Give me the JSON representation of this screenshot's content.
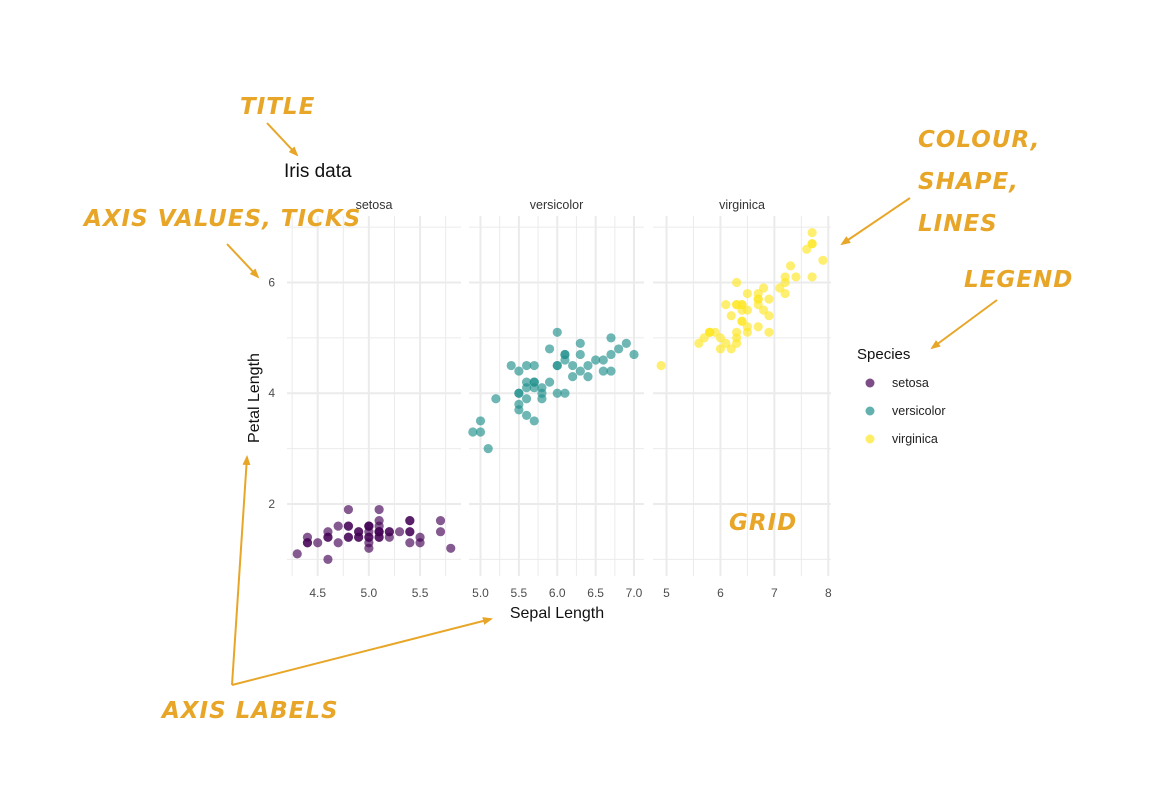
{
  "colors": {
    "setosa": "#440154",
    "versicolor": "#21908C",
    "virginica": "#FDE725",
    "grid": "#ebebeb",
    "annotation": "#E8A628"
  },
  "annotations": [
    {
      "key": "title",
      "text": "TITLE"
    },
    {
      "key": "axis-values",
      "text": "AXIS VALUES, TICKS"
    },
    {
      "key": "colour-1",
      "text": "COLOUR,"
    },
    {
      "key": "colour-2",
      "text": "SHAPE,"
    },
    {
      "key": "colour-3",
      "text": "LINES"
    },
    {
      "key": "legend",
      "text": "LEGEND"
    },
    {
      "key": "grid",
      "text": "GRID"
    },
    {
      "key": "axis-labels",
      "text": "AXIS LABELS"
    }
  ],
  "chart_data": {
    "type": "scatter",
    "title": "Iris data",
    "xlabel": "Sepal Length",
    "ylabel": "Petal Length",
    "yticks": [
      2,
      4,
      6
    ],
    "grid": true,
    "legend_title": "Species",
    "legend_position": "right",
    "facets": [
      {
        "name": "setosa",
        "xlim": [
          4.2,
          5.9
        ],
        "xticks": [
          "4.5",
          "5.0",
          "5.5"
        ],
        "points": [
          [
            5.1,
            1.4
          ],
          [
            4.9,
            1.4
          ],
          [
            4.7,
            1.3
          ],
          [
            4.6,
            1.5
          ],
          [
            5.0,
            1.4
          ],
          [
            5.4,
            1.7
          ],
          [
            4.6,
            1.4
          ],
          [
            5.0,
            1.5
          ],
          [
            4.4,
            1.4
          ],
          [
            4.9,
            1.5
          ],
          [
            5.4,
            1.5
          ],
          [
            4.8,
            1.6
          ],
          [
            4.8,
            1.4
          ],
          [
            4.3,
            1.1
          ],
          [
            5.8,
            1.2
          ],
          [
            5.7,
            1.5
          ],
          [
            5.4,
            1.3
          ],
          [
            5.1,
            1.4
          ],
          [
            5.7,
            1.7
          ],
          [
            5.1,
            1.5
          ],
          [
            5.4,
            1.7
          ],
          [
            5.1,
            1.5
          ],
          [
            4.6,
            1.0
          ],
          [
            5.1,
            1.7
          ],
          [
            4.8,
            1.9
          ],
          [
            5.0,
            1.6
          ],
          [
            5.0,
            1.6
          ],
          [
            5.2,
            1.5
          ],
          [
            5.2,
            1.4
          ],
          [
            4.7,
            1.6
          ],
          [
            4.8,
            1.6
          ],
          [
            5.4,
            1.5
          ],
          [
            5.2,
            1.5
          ],
          [
            5.5,
            1.4
          ],
          [
            4.9,
            1.5
          ],
          [
            5.0,
            1.2
          ],
          [
            5.5,
            1.3
          ],
          [
            4.9,
            1.4
          ],
          [
            4.4,
            1.3
          ],
          [
            5.1,
            1.5
          ],
          [
            5.0,
            1.3
          ],
          [
            4.5,
            1.3
          ],
          [
            4.4,
            1.3
          ],
          [
            5.0,
            1.6
          ],
          [
            5.1,
            1.9
          ],
          [
            4.8,
            1.4
          ],
          [
            5.1,
            1.6
          ],
          [
            4.6,
            1.4
          ],
          [
            5.3,
            1.5
          ],
          [
            5.0,
            1.4
          ]
        ]
      },
      {
        "name": "versicolor",
        "xlim": [
          4.85,
          7.13
        ],
        "xticks": [
          "5.0",
          "5.5",
          "6.0",
          "6.5",
          "7.0"
        ],
        "points": [
          [
            7.0,
            4.7
          ],
          [
            6.4,
            4.5
          ],
          [
            6.9,
            4.9
          ],
          [
            5.5,
            4.0
          ],
          [
            6.5,
            4.6
          ],
          [
            5.7,
            4.5
          ],
          [
            6.3,
            4.7
          ],
          [
            4.9,
            3.3
          ],
          [
            6.6,
            4.6
          ],
          [
            5.2,
            3.9
          ],
          [
            5.0,
            3.5
          ],
          [
            5.9,
            4.2
          ],
          [
            6.0,
            4.0
          ],
          [
            6.1,
            4.7
          ],
          [
            5.6,
            3.6
          ],
          [
            6.7,
            4.4
          ],
          [
            5.6,
            4.5
          ],
          [
            5.8,
            4.1
          ],
          [
            6.2,
            4.5
          ],
          [
            5.6,
            3.9
          ],
          [
            5.9,
            4.8
          ],
          [
            6.1,
            4.0
          ],
          [
            6.3,
            4.9
          ],
          [
            6.1,
            4.7
          ],
          [
            6.4,
            4.3
          ],
          [
            6.6,
            4.4
          ],
          [
            6.8,
            4.8
          ],
          [
            6.7,
            5.0
          ],
          [
            6.0,
            4.5
          ],
          [
            5.7,
            3.5
          ],
          [
            5.5,
            3.8
          ],
          [
            5.5,
            3.7
          ],
          [
            5.8,
            3.9
          ],
          [
            6.0,
            5.1
          ],
          [
            5.4,
            4.5
          ],
          [
            6.0,
            4.5
          ],
          [
            6.7,
            4.7
          ],
          [
            6.3,
            4.4
          ],
          [
            5.6,
            4.1
          ],
          [
            5.5,
            4.0
          ],
          [
            5.5,
            4.4
          ],
          [
            6.1,
            4.6
          ],
          [
            5.8,
            4.0
          ],
          [
            5.0,
            3.3
          ],
          [
            5.6,
            4.2
          ],
          [
            5.7,
            4.2
          ],
          [
            5.7,
            4.2
          ],
          [
            6.2,
            4.3
          ],
          [
            5.1,
            3.0
          ],
          [
            5.7,
            4.1
          ]
        ]
      },
      {
        "name": "virginica",
        "xlim": [
          4.75,
          8.05
        ],
        "xticks": [
          "5",
          "6",
          "7",
          "8"
        ],
        "points": [
          [
            6.3,
            6.0
          ],
          [
            5.8,
            5.1
          ],
          [
            7.1,
            5.9
          ],
          [
            6.3,
            5.6
          ],
          [
            6.5,
            5.8
          ],
          [
            7.6,
            6.6
          ],
          [
            4.9,
            4.5
          ],
          [
            7.3,
            6.3
          ],
          [
            6.7,
            5.8
          ],
          [
            7.2,
            6.1
          ],
          [
            6.5,
            5.1
          ],
          [
            6.4,
            5.3
          ],
          [
            6.8,
            5.5
          ],
          [
            5.7,
            5.0
          ],
          [
            5.8,
            5.1
          ],
          [
            6.4,
            5.3
          ],
          [
            6.5,
            5.5
          ],
          [
            7.7,
            6.7
          ],
          [
            7.7,
            6.9
          ],
          [
            6.0,
            5.0
          ],
          [
            6.9,
            5.7
          ],
          [
            5.6,
            4.9
          ],
          [
            7.7,
            6.7
          ],
          [
            6.3,
            4.9
          ],
          [
            6.7,
            5.7
          ],
          [
            7.2,
            6.0
          ],
          [
            6.2,
            4.8
          ],
          [
            6.1,
            4.9
          ],
          [
            6.4,
            5.6
          ],
          [
            7.2,
            5.8
          ],
          [
            7.4,
            6.1
          ],
          [
            7.9,
            6.4
          ],
          [
            6.4,
            5.6
          ],
          [
            6.3,
            5.1
          ],
          [
            6.1,
            5.6
          ],
          [
            7.7,
            6.1
          ],
          [
            6.3,
            5.6
          ],
          [
            6.4,
            5.5
          ],
          [
            6.0,
            4.8
          ],
          [
            6.9,
            5.4
          ],
          [
            6.7,
            5.6
          ],
          [
            6.9,
            5.1
          ],
          [
            5.8,
            5.1
          ],
          [
            6.8,
            5.9
          ],
          [
            6.7,
            5.7
          ],
          [
            6.7,
            5.2
          ],
          [
            6.3,
            5.0
          ],
          [
            6.5,
            5.2
          ],
          [
            6.2,
            5.4
          ],
          [
            5.9,
            5.1
          ]
        ]
      }
    ]
  }
}
